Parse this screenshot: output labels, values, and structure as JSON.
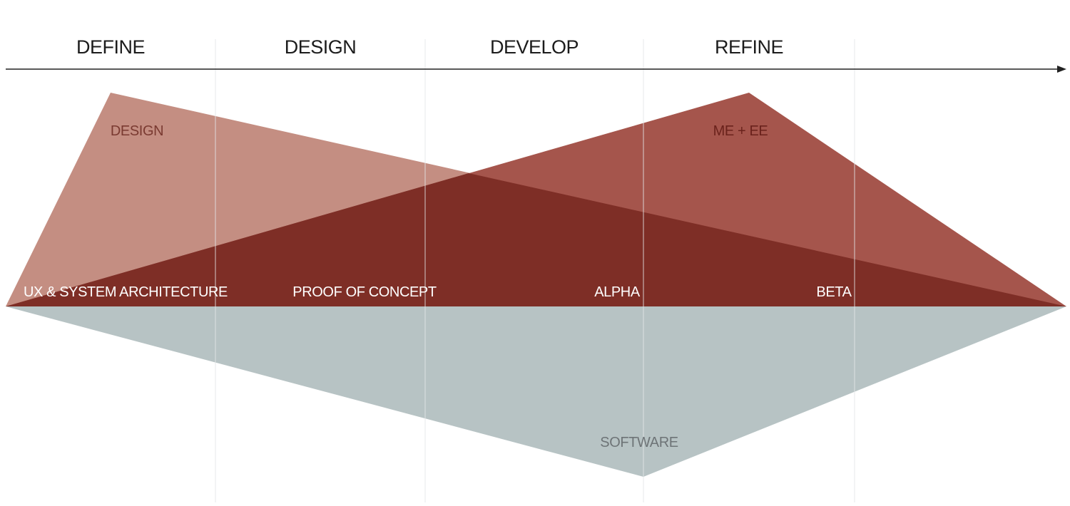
{
  "colors": {
    "design_region": "#c48e82",
    "me_ee_region": "#a5554c",
    "overlap_region": "#7e2e26",
    "software_region": "#b7c3c4",
    "gridline": "#e6e9ea",
    "axis": "#222222",
    "design_label": "#7a3a31",
    "me_ee_label": "#6a221c",
    "software_label": "#6e7477",
    "stage_label": "#ffffff"
  },
  "phases": [
    {
      "label": "DEFINE"
    },
    {
      "label": "DESIGN"
    },
    {
      "label": "DEVELOP"
    },
    {
      "label": "REFINE"
    }
  ],
  "regions": {
    "design": {
      "label": "DESIGN"
    },
    "me_ee": {
      "label": "ME + EE"
    },
    "software": {
      "label": "SOFTWARE"
    }
  },
  "stages": [
    {
      "label": "UX & SYSTEM ARCHITECTURE"
    },
    {
      "label": "PROOF OF CONCEPT"
    },
    {
      "label": "ALPHA"
    },
    {
      "label": "BETA"
    }
  ]
}
